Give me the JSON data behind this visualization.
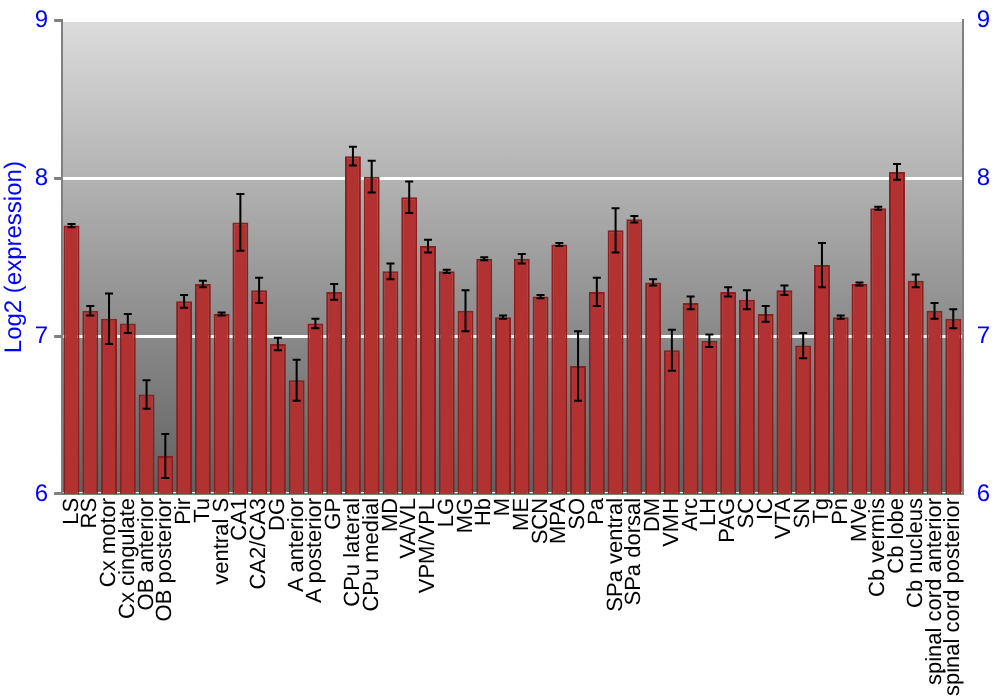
{
  "chart_data": {
    "type": "bar",
    "ylabel": "Log2 (expression)",
    "categories": [
      "LS",
      "RS",
      "Cx motor",
      "Cx cingulate",
      "OB anterior",
      "OB posterior",
      "Pir",
      "Tu",
      "ventral S",
      "CA1",
      "CA2/CA3",
      "DG",
      "A anterior",
      "A posterior",
      "GP",
      "CPu lateral",
      "CPu medial",
      "MD",
      "VA/VL",
      "VPM/VPL",
      "LG",
      "MG",
      "Hb",
      "M",
      "ME",
      "SCN",
      "MPA",
      "SO",
      "Pa",
      "SPa ventral",
      "SPa dorsal",
      "DM",
      "VMH",
      "Arc",
      "LH",
      "PAG",
      "SC",
      "IC",
      "VTA",
      "SN",
      "Tg",
      "Pn",
      "MVe",
      "Cb vermis",
      "Cb lobe",
      "Cb nucleus",
      "spinal cord anterior",
      "spinal cord posterior"
    ],
    "values": [
      7.7,
      7.16,
      7.11,
      7.08,
      6.63,
      6.24,
      7.22,
      7.33,
      7.14,
      7.72,
      7.29,
      6.95,
      6.72,
      7.08,
      7.28,
      8.14,
      8.01,
      7.41,
      7.88,
      7.57,
      7.41,
      7.16,
      7.49,
      7.12,
      7.49,
      7.25,
      7.58,
      6.81,
      7.28,
      7.67,
      7.74,
      7.34,
      6.91,
      7.21,
      6.97,
      7.28,
      7.23,
      7.14,
      7.29,
      6.94,
      7.45,
      7.12,
      7.33,
      7.81,
      8.04,
      7.35,
      7.16,
      7.11
    ],
    "errors": [
      0.01,
      0.03,
      0.16,
      0.06,
      0.09,
      0.14,
      0.04,
      0.02,
      0.01,
      0.18,
      0.08,
      0.04,
      0.13,
      0.03,
      0.05,
      0.06,
      0.1,
      0.05,
      0.1,
      0.04,
      0.01,
      0.13,
      0.01,
      0.01,
      0.03,
      0.01,
      0.01,
      0.22,
      0.09,
      0.14,
      0.02,
      0.02,
      0.13,
      0.04,
      0.04,
      0.03,
      0.06,
      0.05,
      0.03,
      0.08,
      0.14,
      0.01,
      0.01,
      0.01,
      0.05,
      0.04,
      0.05,
      0.06
    ],
    "color": "#b23232",
    "ylim": [
      6,
      9
    ],
    "yticks": [
      6,
      7,
      8,
      9
    ],
    "y2lim": [
      6,
      9
    ],
    "y2ticks": [
      6,
      7,
      8,
      9
    ],
    "grid": "y"
  }
}
